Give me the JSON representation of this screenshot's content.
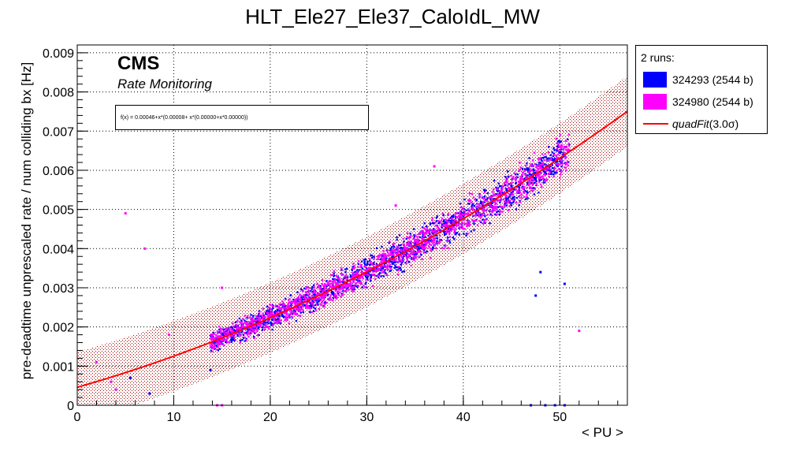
{
  "colors": {
    "run1": "#0000ff",
    "run2": "#ff00ff",
    "fit": "#ff0000",
    "band": "#a00000"
  },
  "chart_data": {
    "type": "scatter",
    "title": "HLT_Ele27_Ele37_CaloIdL_MW",
    "xlabel": "< PU >",
    "ylabel": "pre-deadtime unprescaled rate / num colliding bx [Hz]",
    "xlim": [
      0,
      57
    ],
    "ylim": [
      0,
      0.0092
    ],
    "x_ticks": [
      "0",
      "10",
      "20",
      "30",
      "40",
      "50"
    ],
    "y_ticks": [
      "0",
      "0.001",
      "0.002",
      "0.003",
      "0.004",
      "0.005",
      "0.006",
      "0.007",
      "0.008",
      "0.009"
    ],
    "grid": true,
    "legend_position": "outside-right",
    "legend_header": "2 runs:",
    "cms_label": "CMS",
    "cms_sublabel": "Rate Monitoring",
    "fit_formula": "f(x) = 0.00046+x*(0.00008+ x*(0.00000+x*0.00000))",
    "fit": {
      "name": "quadFit(3.0σ)",
      "label_main": "quadFit",
      "label_sigma": "(3.0σ)",
      "x_range": [
        0,
        57
      ],
      "points": [
        [
          0,
          0.00046
        ],
        [
          10,
          0.00124
        ],
        [
          20,
          0.00219
        ],
        [
          30,
          0.0033
        ],
        [
          40,
          0.00458
        ],
        [
          50,
          0.00603
        ],
        [
          57,
          0.00715
        ]
      ],
      "band_sigma": 3.0,
      "band_halfwidth": 0.0009
    },
    "series": [
      {
        "name": "324293 (2544 b)",
        "color": "#0000ff",
        "cluster_points": [
          [
            14,
            0.0016
          ],
          [
            15,
            0.0018
          ],
          [
            18,
            0.0021
          ],
          [
            21,
            0.0024
          ],
          [
            24,
            0.0027
          ],
          [
            27,
            0.003
          ],
          [
            30,
            0.0034
          ],
          [
            33,
            0.0039
          ],
          [
            36,
            0.0043
          ],
          [
            39,
            0.0047
          ],
          [
            42,
            0.0051
          ],
          [
            45,
            0.0056
          ],
          [
            48,
            0.0061
          ],
          [
            51,
            0.0065
          ]
        ],
        "outliers": [
          [
            7.5,
            0.0003
          ],
          [
            13.8,
            0.0009
          ],
          [
            42,
            0.0053
          ],
          [
            47.5,
            0.0028
          ],
          [
            48,
            0.0034
          ],
          [
            50.5,
            0.0031
          ],
          [
            5.5,
            0.0007
          ],
          [
            47,
            0.0
          ],
          [
            48.5,
            0.0
          ],
          [
            49.5,
            0.0
          ],
          [
            50.5,
            0.0
          ]
        ]
      },
      {
        "name": "324980 (2544 b)",
        "color": "#ff00ff",
        "cluster_points": [
          [
            14,
            0.0017
          ],
          [
            17,
            0.0021
          ],
          [
            20,
            0.0023
          ],
          [
            23,
            0.0027
          ],
          [
            26,
            0.0031
          ],
          [
            29,
            0.0034
          ],
          [
            32,
            0.0038
          ],
          [
            35,
            0.0042
          ],
          [
            38,
            0.0046
          ],
          [
            41,
            0.005
          ],
          [
            44,
            0.0055
          ],
          [
            47,
            0.006
          ],
          [
            50,
            0.0066
          ]
        ],
        "outliers": [
          [
            5,
            0.0049
          ],
          [
            7,
            0.004
          ],
          [
            15,
            0.003
          ],
          [
            37,
            0.0061
          ],
          [
            33,
            0.0051
          ],
          [
            52,
            0.0019
          ],
          [
            2,
            0.0011
          ],
          [
            3.5,
            0.0006
          ],
          [
            4,
            0.0004
          ],
          [
            9.5,
            0.0018
          ],
          [
            14.5,
            0.0
          ],
          [
            15,
            0.0
          ]
        ]
      }
    ]
  }
}
